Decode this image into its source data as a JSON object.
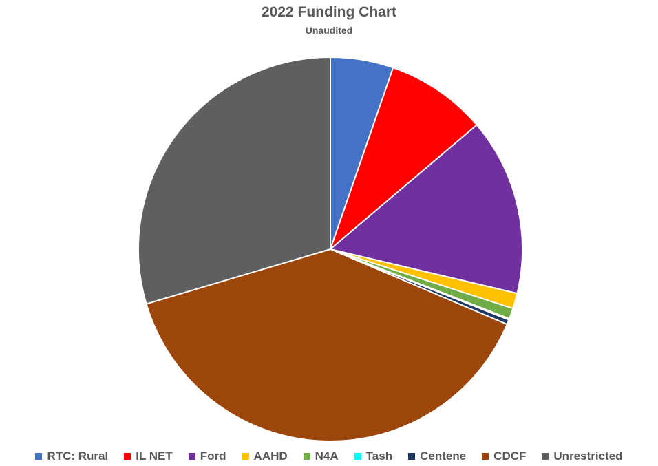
{
  "chart_data": {
    "type": "pie",
    "title": "2022 Funding Chart",
    "subtitle": "Unaudited",
    "legend_position": "bottom",
    "slices": [
      {
        "label": "RTC: Rural",
        "value": 5.3,
        "color": "#4472C4"
      },
      {
        "label": "IL NET",
        "value": 8.5,
        "color": "#FF0000"
      },
      {
        "label": "Ford",
        "value": 14.9,
        "color": "#7030A0"
      },
      {
        "label": "AAHD",
        "value": 1.3,
        "color": "#FFC000"
      },
      {
        "label": "N4A",
        "value": 0.9,
        "color": "#70AD47"
      },
      {
        "label": "Tash",
        "value": 0.1,
        "color": "#00FFFF"
      },
      {
        "label": "Centene",
        "value": 0.4,
        "color": "#203864"
      },
      {
        "label": "CDCF",
        "value": 39.0,
        "color": "#9C460B"
      },
      {
        "label": "Unrestricted",
        "value": 29.6,
        "color": "#5F5F5F"
      }
    ]
  }
}
